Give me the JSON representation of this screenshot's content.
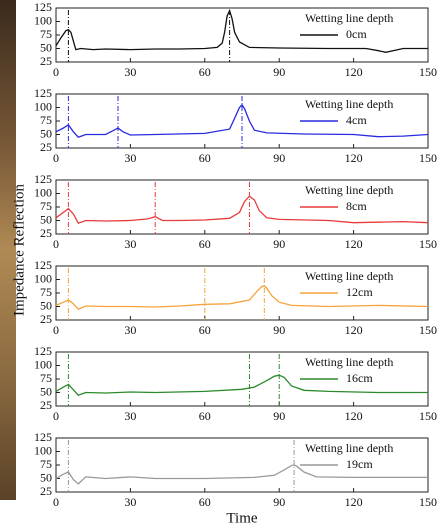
{
  "chart_data": [
    {
      "type": "line",
      "legend_title": "Wetting line depth",
      "xlim": [
        0,
        150
      ],
      "ylim": [
        25,
        125
      ],
      "xticks": [
        0,
        30,
        60,
        90,
        120,
        150
      ],
      "yticks": [
        25,
        50,
        75,
        100,
        125
      ],
      "markers": [
        5,
        70
      ],
      "x": [
        0,
        2,
        4,
        5,
        6,
        8,
        10,
        15,
        20,
        30,
        40,
        50,
        60,
        65,
        67,
        68,
        69,
        70,
        71,
        72,
        74,
        78,
        90,
        110,
        125,
        130,
        133,
        137,
        140,
        150
      ],
      "series": [
        {
          "name": "0cm",
          "color": "#111111",
          "values": [
            55,
            70,
            83,
            85,
            80,
            48,
            50,
            48,
            49,
            48,
            49,
            49,
            50,
            52,
            60,
            80,
            110,
            120,
            105,
            80,
            62,
            52,
            51,
            50,
            50,
            46,
            43,
            47,
            50,
            50
          ]
        }
      ]
    },
    {
      "type": "line",
      "legend_title": "Wetting line depth",
      "xlim": [
        0,
        150
      ],
      "ylim": [
        25,
        125
      ],
      "xticks": [
        0,
        30,
        60,
        90,
        120,
        150
      ],
      "yticks": [
        25,
        50,
        75,
        100,
        125
      ],
      "markers": [
        5,
        25,
        75
      ],
      "x": [
        0,
        3,
        5,
        7,
        9,
        12,
        15,
        20,
        23,
        25,
        27,
        30,
        40,
        60,
        70,
        72,
        74,
        75,
        76,
        78,
        80,
        85,
        100,
        120,
        130,
        140,
        150
      ],
      "series": [
        {
          "name": "4cm",
          "color": "#2a2ae0",
          "values": [
            55,
            62,
            68,
            55,
            45,
            50,
            50,
            50,
            57,
            62,
            55,
            49,
            50,
            52,
            60,
            80,
            100,
            105,
            98,
            75,
            58,
            53,
            51,
            50,
            46,
            47,
            50
          ]
        }
      ]
    },
    {
      "type": "line",
      "legend_title": "Wetting line depth",
      "xlim": [
        0,
        150
      ],
      "ylim": [
        25,
        125
      ],
      "xticks": [
        0,
        30,
        60,
        90,
        120,
        150
      ],
      "yticks": [
        25,
        50,
        75,
        100,
        125
      ],
      "markers": [
        5,
        40,
        78
      ],
      "x": [
        0,
        3,
        5,
        7,
        9,
        12,
        20,
        30,
        37,
        40,
        43,
        50,
        60,
        70,
        74,
        76,
        78,
        80,
        82,
        85,
        90,
        110,
        120,
        140,
        150
      ],
      "series": [
        {
          "name": "8cm",
          "color": "#e83a3a",
          "values": [
            55,
            65,
            72,
            62,
            45,
            50,
            49,
            50,
            53,
            57,
            50,
            50,
            51,
            54,
            65,
            85,
            95,
            88,
            68,
            55,
            52,
            50,
            46,
            48,
            46
          ]
        }
      ]
    },
    {
      "type": "line",
      "legend_title": "Wetting line depth",
      "xlim": [
        0,
        150
      ],
      "ylim": [
        25,
        125
      ],
      "xticks": [
        0,
        30,
        60,
        90,
        120,
        150
      ],
      "yticks": [
        25,
        50,
        75,
        100,
        125
      ],
      "markers": [
        5,
        60,
        84
      ],
      "ylabel": "Impedance Reflection",
      "x": [
        0,
        3,
        5,
        7,
        9,
        12,
        20,
        30,
        40,
        50,
        60,
        70,
        78,
        81,
        83,
        84,
        85,
        87,
        90,
        95,
        110,
        130,
        150
      ],
      "series": [
        {
          "name": "12cm",
          "color": "#f5a33a",
          "values": [
            52,
            58,
            62,
            55,
            45,
            51,
            50,
            50,
            49,
            51,
            54,
            55,
            62,
            78,
            87,
            88,
            84,
            70,
            58,
            52,
            50,
            52,
            50
          ]
        }
      ]
    },
    {
      "type": "line",
      "legend_title": "Wetting line depth",
      "xlim": [
        0,
        150
      ],
      "ylim": [
        25,
        125
      ],
      "xticks": [
        0,
        30,
        60,
        90,
        120,
        150
      ],
      "yticks": [
        25,
        50,
        75,
        100,
        125
      ],
      "markers": [
        5,
        78,
        90
      ],
      "x": [
        0,
        3,
        5,
        7,
        9,
        12,
        20,
        30,
        40,
        60,
        75,
        80,
        85,
        88,
        90,
        92,
        95,
        100,
        110,
        130,
        150
      ],
      "series": [
        {
          "name": "16cm",
          "color": "#2c8a2c",
          "values": [
            52,
            60,
            65,
            55,
            45,
            50,
            49,
            51,
            50,
            52,
            56,
            60,
            72,
            80,
            82,
            78,
            62,
            54,
            52,
            50,
            50
          ]
        }
      ]
    },
    {
      "type": "line",
      "legend_title": "Wetting line depth",
      "xlim": [
        0,
        150
      ],
      "ylim": [
        25,
        125
      ],
      "xticks": [
        0,
        30,
        60,
        90,
        120,
        150
      ],
      "yticks": [
        25,
        50,
        75,
        100,
        125
      ],
      "markers": [
        5,
        96
      ],
      "xlabel": "Time",
      "x": [
        0,
        3,
        5,
        7,
        9,
        12,
        20,
        30,
        40,
        60,
        80,
        88,
        92,
        95,
        96,
        97,
        100,
        105,
        120,
        150
      ],
      "series": [
        {
          "name": "19cm",
          "color": "#999999",
          "values": [
            50,
            58,
            62,
            48,
            40,
            53,
            50,
            53,
            50,
            50,
            52,
            56,
            66,
            74,
            75,
            73,
            62,
            53,
            52,
            52
          ]
        }
      ]
    }
  ]
}
